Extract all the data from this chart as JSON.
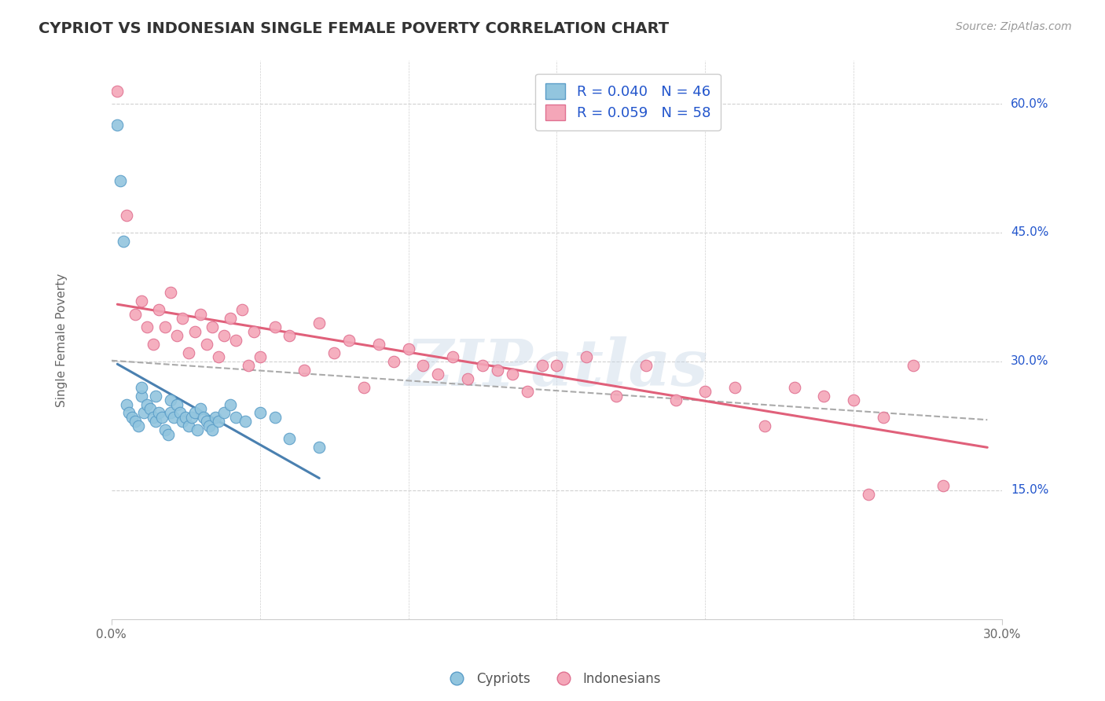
{
  "title": "CYPRIOT VS INDONESIAN SINGLE FEMALE POVERTY CORRELATION CHART",
  "source": "Source: ZipAtlas.com",
  "ylabel": "Single Female Poverty",
  "xlim": [
    0.0,
    0.3
  ],
  "ylim": [
    0.0,
    0.65
  ],
  "legend_r1": "R = 0.040",
  "legend_n1": "N = 46",
  "legend_r2": "R = 0.059",
  "legend_n2": "N = 58",
  "cypriot_color": "#92c5de",
  "indonesian_color": "#f4a6b8",
  "cypriot_edge": "#5a9dc8",
  "indonesian_edge": "#e07090",
  "trend_blue": "#4a80b0",
  "trend_pink": "#e0607a",
  "trend_gray": "#aaaaaa",
  "watermark": "ZIPatlas",
  "background": "#ffffff",
  "grid_color": "#d0d0d0",
  "legend_color": "#2255cc",
  "cypriot_x": [
    0.002,
    0.003,
    0.004,
    0.005,
    0.006,
    0.007,
    0.008,
    0.009,
    0.01,
    0.01,
    0.011,
    0.012,
    0.013,
    0.014,
    0.015,
    0.015,
    0.016,
    0.017,
    0.018,
    0.019,
    0.02,
    0.02,
    0.021,
    0.022,
    0.023,
    0.024,
    0.025,
    0.026,
    0.027,
    0.028,
    0.029,
    0.03,
    0.031,
    0.032,
    0.033,
    0.034,
    0.035,
    0.036,
    0.038,
    0.04,
    0.042,
    0.045,
    0.05,
    0.055,
    0.06,
    0.07
  ],
  "cypriot_y": [
    0.575,
    0.51,
    0.44,
    0.25,
    0.24,
    0.235,
    0.23,
    0.225,
    0.26,
    0.27,
    0.24,
    0.25,
    0.245,
    0.235,
    0.26,
    0.23,
    0.24,
    0.235,
    0.22,
    0.215,
    0.255,
    0.24,
    0.235,
    0.25,
    0.24,
    0.23,
    0.235,
    0.225,
    0.235,
    0.24,
    0.22,
    0.245,
    0.235,
    0.23,
    0.225,
    0.22,
    0.235,
    0.23,
    0.24,
    0.25,
    0.235,
    0.23,
    0.24,
    0.235,
    0.21,
    0.2
  ],
  "indonesian_x": [
    0.002,
    0.005,
    0.008,
    0.01,
    0.012,
    0.014,
    0.016,
    0.018,
    0.02,
    0.022,
    0.024,
    0.026,
    0.028,
    0.03,
    0.032,
    0.034,
    0.036,
    0.038,
    0.04,
    0.042,
    0.044,
    0.046,
    0.048,
    0.05,
    0.055,
    0.06,
    0.065,
    0.07,
    0.075,
    0.08,
    0.085,
    0.09,
    0.095,
    0.1,
    0.105,
    0.11,
    0.115,
    0.12,
    0.125,
    0.13,
    0.135,
    0.14,
    0.145,
    0.15,
    0.16,
    0.17,
    0.18,
    0.19,
    0.2,
    0.21,
    0.22,
    0.23,
    0.24,
    0.25,
    0.255,
    0.26,
    0.27,
    0.28
  ],
  "indonesian_y": [
    0.615,
    0.47,
    0.355,
    0.37,
    0.34,
    0.32,
    0.36,
    0.34,
    0.38,
    0.33,
    0.35,
    0.31,
    0.335,
    0.355,
    0.32,
    0.34,
    0.305,
    0.33,
    0.35,
    0.325,
    0.36,
    0.295,
    0.335,
    0.305,
    0.34,
    0.33,
    0.29,
    0.345,
    0.31,
    0.325,
    0.27,
    0.32,
    0.3,
    0.315,
    0.295,
    0.285,
    0.305,
    0.28,
    0.295,
    0.29,
    0.285,
    0.265,
    0.295,
    0.295,
    0.305,
    0.26,
    0.295,
    0.255,
    0.265,
    0.27,
    0.225,
    0.27,
    0.26,
    0.255,
    0.145,
    0.235,
    0.295,
    0.155
  ]
}
